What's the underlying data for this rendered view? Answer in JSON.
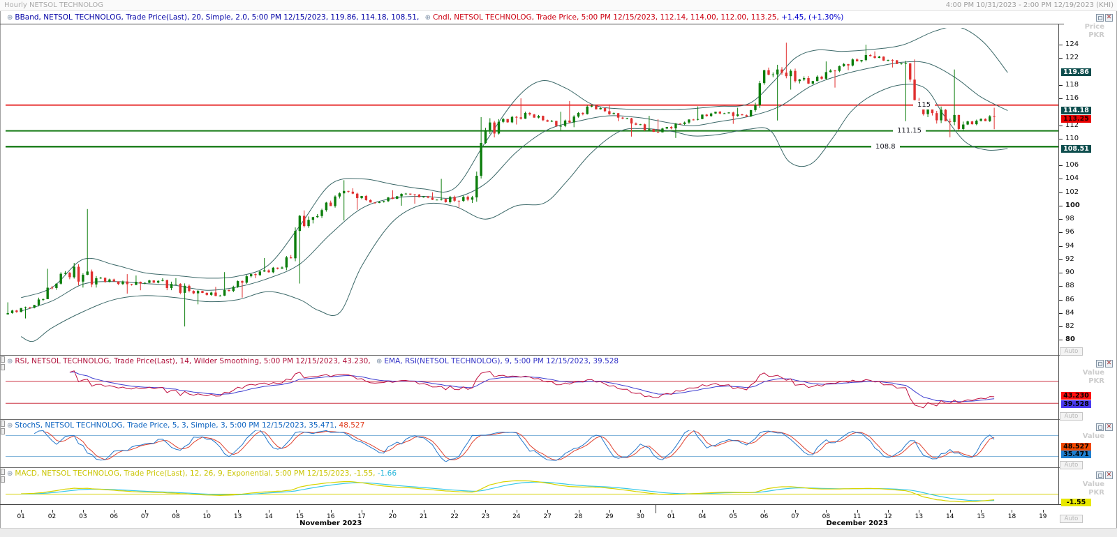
{
  "window": {
    "title": "Hourly NETSOL TECHNOLOG",
    "time_range": "4:00 PM 10/31/2023 - 2:00 PM 12/19/2023 (KHI)"
  },
  "icons": {
    "indicator_glyph": "⊕",
    "close_glyph": "✕"
  },
  "panels": {
    "main": {
      "legend_bband": "BBand, NETSOL TECHNOLOG, Trade Price(Last),  20, Simple, 2.0,  5:00 PM 12/15/2023,  119.86, 114.18, 108.51,",
      "legend_cndl": "Cndl, NETSOL TECHNOLOG, Trade Price,  5:00 PM 12/15/2023,  112.14, 114.00, 112.00, 113.25,",
      "legend_change": " +1.45, (+1.30%)",
      "axis_title_1": "Price",
      "axis_title_2": "PKR",
      "auto_label": "Auto",
      "ticks": [
        {
          "value": 124,
          "bold": false
        },
        {
          "value": 122,
          "bold": false
        },
        {
          "value": 118,
          "bold": false
        },
        {
          "value": 116,
          "bold": false
        },
        {
          "value": 112,
          "bold": false
        },
        {
          "value": 110,
          "bold": false
        },
        {
          "value": 106,
          "bold": false
        },
        {
          "value": 104,
          "bold": false
        },
        {
          "value": 102,
          "bold": false
        },
        {
          "value": 100,
          "bold": true
        },
        {
          "value": 98,
          "bold": false
        },
        {
          "value": 96,
          "bold": false
        },
        {
          "value": 94,
          "bold": false
        },
        {
          "value": 92,
          "bold": false
        },
        {
          "value": 90,
          "bold": false
        },
        {
          "value": 88,
          "bold": false
        },
        {
          "value": 86,
          "bold": false
        },
        {
          "value": 84,
          "bold": false
        },
        {
          "value": 82,
          "bold": false
        },
        {
          "value": 80,
          "bold": true
        }
      ],
      "badges": [
        {
          "value": 119.86,
          "text": "119.86",
          "bg": "#0d4d4d",
          "fg": "#ffffff"
        },
        {
          "value": 114.18,
          "text": "114.18",
          "bg": "#0d4d4d",
          "fg": "#ffffff"
        },
        {
          "value": 113.25,
          "text": "113.25",
          "bg": "#ea0000",
          "fg": "#300000"
        },
        {
          "value": 108.51,
          "text": "108.51",
          "bg": "#0d4d4d",
          "fg": "#ffffff"
        }
      ]
    },
    "rsi": {
      "legend_rsi": "RSI, NETSOL TECHNOLOG, Trade Price(Last),  14, Wilder Smoothing,  5:00 PM 12/15/2023,  43.230,",
      "legend_ema": "EMA, RSI(NETSOL TECHNOLOG),  9,  5:00 PM 12/15/2023,  39.528",
      "axis_title_1": "Value",
      "axis_title_2": "PKR",
      "auto_label": "Auto",
      "badges": [
        {
          "value": 43.23,
          "text": "43.230",
          "bg": "#ff1010",
          "fg": "#000000"
        },
        {
          "value": 39.528,
          "text": "39.528",
          "bg": "#4a3af0",
          "fg": "#000000"
        }
      ]
    },
    "stoch": {
      "legend_stoch": "StochS, NETSOL TECHNOLOG, Trade Price,  5, 3, Simple, 3,  5:00 PM 12/15/2023,  35.471,",
      "legend_stoch2": " 48.527",
      "axis_title_1": "Value",
      "auto_label": "Auto",
      "badges": [
        {
          "value": 48.527,
          "text": "48.527",
          "bg": "#f04800",
          "fg": "#000000"
        },
        {
          "value": 35.471,
          "text": "35.471",
          "bg": "#1f7fd0",
          "fg": "#000000"
        }
      ]
    },
    "macd": {
      "legend_macd": "MACD, NETSOL TECHNOLOG, Trade Price(Last),  12, 26, 9, Exponential,  5:00 PM 12/15/2023,  -1.55,",
      "legend_macd2": " -1.66",
      "axis_title_1": "Value",
      "axis_title_2": "PKR",
      "auto_label": "Auto",
      "badges": [
        {
          "value": -1.55,
          "text": "-1.55",
          "bg": "#e8e800",
          "fg": "#000000"
        }
      ]
    }
  },
  "xaxis": {
    "days": [
      "01",
      "02",
      "03",
      "06",
      "07",
      "08",
      "10",
      "13",
      "14",
      "15",
      "16",
      "17",
      "20",
      "21",
      "22",
      "23",
      "24",
      "27",
      "28",
      "29",
      "30",
      "01",
      "04",
      "05",
      "06",
      "07",
      "08",
      "11",
      "12",
      "13",
      "14",
      "15",
      "18",
      "19"
    ],
    "months": [
      {
        "label": "November 2023",
        "start_day": 0,
        "end_day": 20
      },
      {
        "label": "December 2023",
        "start_day": 21,
        "end_day": 33
      }
    ],
    "month_boundary_after_day": 20
  },
  "chart_data": [
    {
      "type": "candlestick",
      "name": "Cndl NETSOL TECHNOLOG Trade Price (hourly)",
      "candles_per_day": 7,
      "ylim": [
        79.0,
        126.5
      ],
      "x_categories": [
        "Nov 01",
        "Nov 02",
        "Nov 03",
        "Nov 06",
        "Nov 07",
        "Nov 08",
        "Nov 10",
        "Nov 13",
        "Nov 14",
        "Nov 15",
        "Nov 16",
        "Nov 17",
        "Nov 20",
        "Nov 21",
        "Nov 22",
        "Nov 23",
        "Nov 24",
        "Nov 27",
        "Nov 28",
        "Nov 29",
        "Nov 30",
        "Dec 01",
        "Dec 04",
        "Dec 05",
        "Dec 06",
        "Dec 07",
        "Dec 08",
        "Dec 11",
        "Dec 12",
        "Dec 13",
        "Dec 14",
        "Dec 15"
      ],
      "daily_ohlc": [
        [
          83.8,
          85.6,
          83.2,
          85.2
        ],
        [
          85.2,
          90.6,
          85.0,
          90.0
        ],
        [
          90.0,
          99.5,
          87.8,
          89.2
        ],
        [
          89.2,
          89.8,
          86.9,
          88.3
        ],
        [
          88.3,
          89.6,
          87.4,
          88.8
        ],
        [
          88.8,
          89.2,
          82.0,
          87.3
        ],
        [
          87.3,
          87.9,
          85.3,
          86.6
        ],
        [
          86.6,
          90.1,
          86.3,
          89.8
        ],
        [
          89.8,
          92.2,
          89.2,
          90.8
        ],
        [
          90.8,
          99.3,
          88.4,
          98.3
        ],
        [
          98.3,
          103.8,
          97.8,
          102.2
        ],
        [
          102.2,
          102.6,
          99.4,
          100.4
        ],
        [
          100.4,
          102.3,
          100.0,
          101.8
        ],
        [
          101.8,
          102.0,
          100.3,
          100.9
        ],
        [
          100.9,
          104.0,
          99.7,
          100.9
        ],
        [
          100.9,
          113.2,
          100.4,
          112.5
        ],
        [
          112.5,
          116.0,
          112.1,
          113.6
        ],
        [
          113.6,
          114.0,
          111.2,
          111.9
        ],
        [
          111.9,
          115.6,
          111.7,
          114.9
        ],
        [
          114.9,
          115.1,
          112.6,
          113.0
        ],
        [
          113.0,
          113.4,
          110.3,
          111.0
        ],
        [
          111.0,
          112.9,
          110.1,
          112.4
        ],
        [
          112.4,
          114.8,
          112.2,
          114.0
        ],
        [
          114.0,
          114.6,
          112.2,
          113.3
        ],
        [
          113.3,
          121.0,
          112.7,
          120.3
        ],
        [
          120.3,
          124.3,
          117.3,
          118.2
        ],
        [
          118.2,
          121.5,
          117.6,
          120.8
        ],
        [
          120.8,
          124.0,
          120.2,
          122.3
        ],
        [
          122.3,
          123.0,
          120.6,
          121.2
        ],
        [
          121.2,
          121.8,
          112.6,
          113.8
        ],
        [
          113.8,
          120.3,
          110.2,
          112.1
        ],
        [
          112.1,
          114.6,
          111.4,
          113.25
        ]
      ],
      "last_candle": {
        "open": 112.14,
        "high": 114.0,
        "low": 112.0,
        "close": 113.25,
        "change": "+1.45",
        "change_pct": "+1.30%"
      },
      "bollinger": {
        "period": 20,
        "ma_type": "Simple",
        "stdev": 2.0,
        "last": {
          "upper": 119.86,
          "middle": 114.18,
          "lower": 108.51
        },
        "color": "#3b6868",
        "upper_keypoints": [
          [
            0,
            86.3
          ],
          [
            1,
            87.8
          ],
          [
            2,
            92.0
          ],
          [
            3,
            91.2
          ],
          [
            4,
            90.0
          ],
          [
            5,
            89.6
          ],
          [
            6,
            89.2
          ],
          [
            7,
            89.5
          ],
          [
            8,
            91.2
          ],
          [
            9,
            97.0
          ],
          [
            10,
            103.2
          ],
          [
            11,
            104.0
          ],
          [
            12,
            103.2
          ],
          [
            13,
            102.5
          ],
          [
            14,
            102.6
          ],
          [
            15,
            109.5
          ],
          [
            16,
            116.0
          ],
          [
            16.8,
            118.6
          ],
          [
            17.6,
            117.5
          ],
          [
            18.5,
            115.0
          ],
          [
            19.5,
            114.4
          ],
          [
            20.5,
            114.3
          ],
          [
            21.5,
            114.4
          ],
          [
            22.5,
            114.8
          ],
          [
            23.5,
            115.2
          ],
          [
            24.3,
            118.5
          ],
          [
            25,
            122.0
          ],
          [
            25.7,
            123.2
          ],
          [
            26.5,
            123.0
          ],
          [
            27.5,
            123.3
          ],
          [
            28.5,
            124.0
          ],
          [
            29.5,
            126.0
          ],
          [
            30.3,
            126.6
          ],
          [
            31.1,
            124.3
          ],
          [
            31.86,
            119.86
          ]
        ],
        "middle_keypoints": [
          [
            0,
            84.3
          ],
          [
            1,
            85.8
          ],
          [
            2,
            88.3
          ],
          [
            3,
            88.7
          ],
          [
            4,
            88.4
          ],
          [
            5,
            88.1
          ],
          [
            6,
            87.4
          ],
          [
            7,
            87.9
          ],
          [
            8,
            89.2
          ],
          [
            9,
            91.3
          ],
          [
            10,
            95.8
          ],
          [
            11,
            99.6
          ],
          [
            12,
            101.1
          ],
          [
            13,
            101.4
          ],
          [
            14,
            101.2
          ],
          [
            15,
            103.3
          ],
          [
            16,
            108.0
          ],
          [
            17,
            111.3
          ],
          [
            18,
            112.6
          ],
          [
            19,
            113.4
          ],
          [
            20,
            113.1
          ],
          [
            21,
            112.3
          ],
          [
            21.7,
            111.9
          ],
          [
            22.5,
            112.5
          ],
          [
            23.5,
            113.3
          ],
          [
            24.5,
            114.8
          ],
          [
            25.5,
            117.8
          ],
          [
            26.5,
            119.5
          ],
          [
            27.5,
            120.6
          ],
          [
            28.5,
            121.4
          ],
          [
            29.3,
            121.2
          ],
          [
            30.2,
            119.0
          ],
          [
            31,
            116.2
          ],
          [
            31.86,
            114.18
          ]
        ],
        "lower_keypoints": [
          [
            0,
            80.5
          ],
          [
            0.4,
            79.8
          ],
          [
            1,
            81.8
          ],
          [
            2,
            84.2
          ],
          [
            3,
            86.0
          ],
          [
            4,
            86.6
          ],
          [
            5,
            86.3
          ],
          [
            6,
            85.7
          ],
          [
            7,
            86.0
          ],
          [
            8,
            87.2
          ],
          [
            9,
            86.0
          ],
          [
            9.6,
            84.4
          ],
          [
            10.3,
            84.1
          ],
          [
            11,
            91.0
          ],
          [
            12,
            97.6
          ],
          [
            13,
            100.2
          ],
          [
            14,
            99.9
          ],
          [
            15,
            98.0
          ],
          [
            16,
            100.0
          ],
          [
            16.9,
            100.4
          ],
          [
            17.6,
            103.5
          ],
          [
            18.4,
            107.8
          ],
          [
            19.3,
            111.0
          ],
          [
            20,
            111.5
          ],
          [
            21,
            111.1
          ],
          [
            21.7,
            110.4
          ],
          [
            22.5,
            110.6
          ],
          [
            23.5,
            111.4
          ],
          [
            24.2,
            111.2
          ],
          [
            24.8,
            106.6
          ],
          [
            25.5,
            106.2
          ],
          [
            26.2,
            110.0
          ],
          [
            26.8,
            114.0
          ],
          [
            27.5,
            116.5
          ],
          [
            28.4,
            118.0
          ],
          [
            29.2,
            117.5
          ],
          [
            29.8,
            113.5
          ],
          [
            30.5,
            109.5
          ],
          [
            31.2,
            108.3
          ],
          [
            31.86,
            108.51
          ]
        ]
      },
      "hlines": [
        {
          "value": 115,
          "label": "115",
          "color": "#e10000",
          "width": 1.6
        },
        {
          "value": 111.15,
          "label": "111.15",
          "color": "#157a15",
          "width": 2
        },
        {
          "value": 108.8,
          "label": "108.8",
          "color": "#157a15",
          "width": 2.4
        }
      ],
      "colors": {
        "up": "#0b7d0b",
        "down": "#e03030"
      }
    },
    {
      "type": "line",
      "name": "RSI",
      "period": 14,
      "smoothing": "Wilder Smoothing",
      "last": 43.23,
      "ema_period": 9,
      "ema_last": 39.528,
      "ylim": [
        15,
        95
      ],
      "hlines": [
        70,
        30
      ],
      "hline_color": "#cc3344",
      "colors": {
        "rsi": "#c01040",
        "ema": "#3c3cd0"
      }
    },
    {
      "type": "line",
      "name": "StochS",
      "params": "5, 3, Simple, 3",
      "last_k": 35.471,
      "last_d": 48.527,
      "ylim": [
        5,
        95
      ],
      "hlines": [
        80,
        20
      ],
      "hline_color": "#88b8dc",
      "colors": {
        "k": "#2277cc",
        "d": "#e04330"
      }
    },
    {
      "type": "line",
      "name": "MACD",
      "params": "12, 26, 9, Exponential",
      "last_macd": -1.55,
      "last_signal": -1.66,
      "hlines": [
        0
      ],
      "hline_color": "#d6d000",
      "colors": {
        "macd": "#d8d400",
        "signal": "#38c8e8"
      }
    }
  ]
}
